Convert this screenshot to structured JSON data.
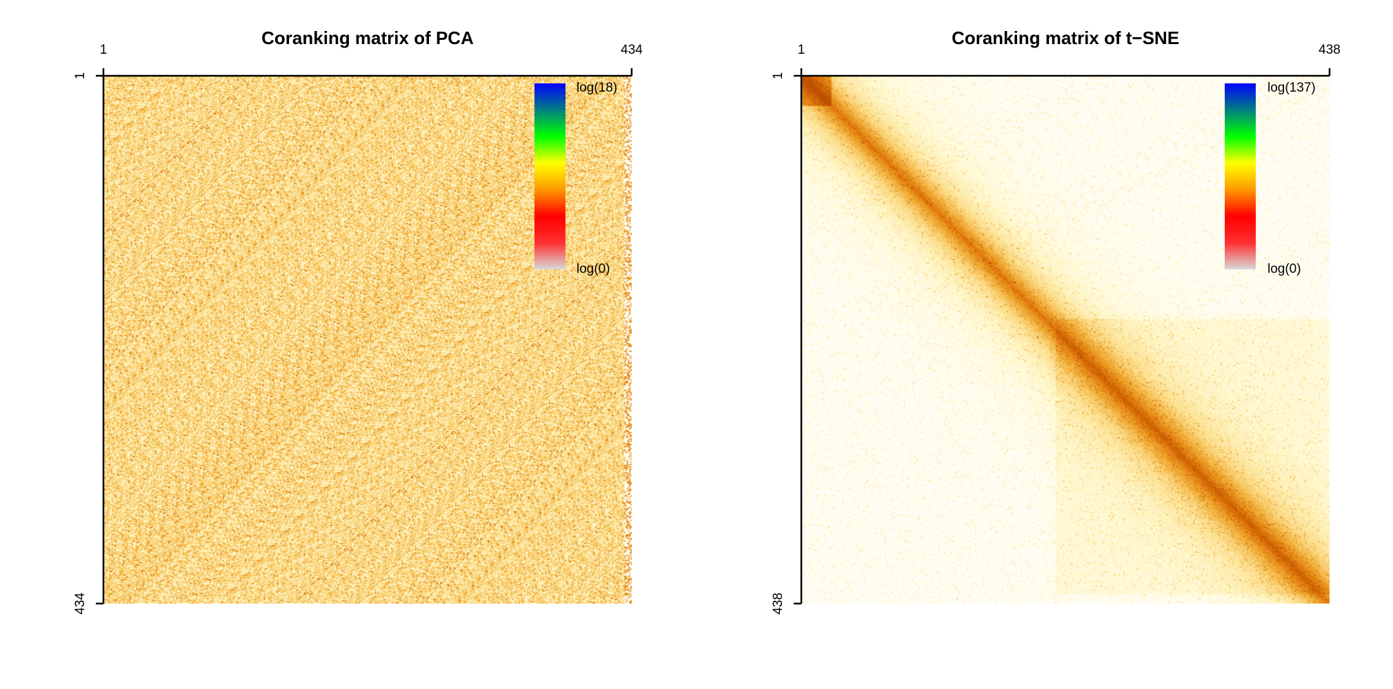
{
  "chart_data": [
    {
      "type": "heatmap",
      "title": "Coranking matrix of PCA",
      "n": 434,
      "x_ticks": [
        "1",
        "434"
      ],
      "y_ticks": [
        "1",
        "434"
      ],
      "legend": {
        "max_label": "log(18)",
        "min_label": "log(0)",
        "max": 18,
        "min": 0
      },
      "pattern": "uniform",
      "colors": [
        "#d9d9d9",
        "#ff3030",
        "#ff0000",
        "#ff9900",
        "#ffff00",
        "#00ff00",
        "#008080",
        "#0000ff"
      ],
      "grid": false
    },
    {
      "type": "heatmap",
      "title": "Coranking matrix of t−SNE",
      "n": 438,
      "x_ticks": [
        "1",
        "438"
      ],
      "y_ticks": [
        "1",
        "438"
      ],
      "legend": {
        "max_label": "log(137)",
        "min_label": "log(0)",
        "max": 137,
        "min": 0
      },
      "pattern": "diagonal",
      "colors": [
        "#d9d9d9",
        "#ff3030",
        "#ff0000",
        "#ff9900",
        "#ffff00",
        "#00ff00",
        "#008080",
        "#0000ff"
      ],
      "grid": false
    }
  ]
}
